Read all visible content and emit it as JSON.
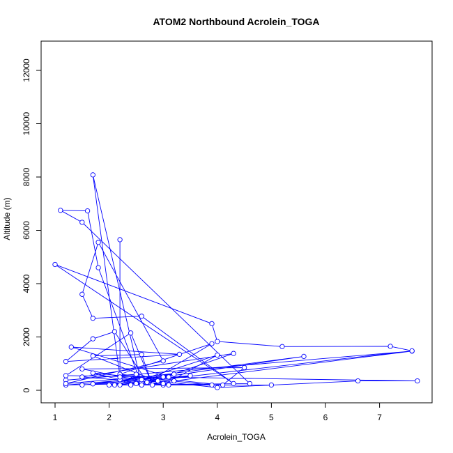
{
  "chart_data": {
    "type": "line",
    "title": "ATOM2 Northbound Acrolein_TOGA",
    "xlabel": "Acrolein_TOGA",
    "ylabel": "Altitude (m)",
    "xlim": [
      1,
      7.7
    ],
    "ylim": [
      0,
      12000
    ],
    "x_ticks": [
      1,
      2,
      3,
      4,
      5,
      6,
      7
    ],
    "y_ticks": [
      0,
      2000,
      4000,
      6000,
      8000,
      10000,
      12000
    ],
    "series_color": "#0000ff",
    "series": [
      {
        "marker": "open-circle",
        "points": [
          [
            2.2,
            5650
          ],
          [
            2.2,
            400
          ],
          [
            2.6,
            300
          ],
          [
            3.1,
            500
          ],
          [
            1.3,
            1620
          ],
          [
            3.3,
            1350
          ],
          [
            1.2,
            1080
          ],
          [
            1.7,
            1930
          ],
          [
            2.1,
            2200
          ],
          [
            2.7,
            300
          ],
          [
            3.9,
            1750
          ],
          [
            2.2,
            600
          ],
          [
            4.1,
            200
          ],
          [
            4.5,
            850
          ],
          [
            1.5,
            800
          ],
          [
            3.0,
            200
          ],
          [
            4.0,
            1320
          ],
          [
            2.6,
            400
          ],
          [
            1.5,
            200
          ],
          [
            3.5,
            550
          ],
          [
            2.2,
            200
          ],
          [
            2.5,
            600
          ],
          [
            1.2,
            380
          ],
          [
            7.6,
            1470
          ],
          [
            3.2,
            350
          ],
          [
            1.7,
            240
          ],
          [
            5.6,
            1270
          ],
          [
            3.0,
            500
          ],
          [
            1.2,
            200
          ],
          [
            2.5,
            250
          ],
          [
            3.9,
            200
          ],
          [
            1.7,
            650
          ],
          [
            2.6,
            200
          ],
          [
            4.3,
            1380
          ],
          [
            1.5,
            500
          ],
          [
            3.0,
            250
          ],
          [
            1.7,
            1290
          ],
          [
            2.6,
            1340
          ],
          [
            2.8,
            200
          ],
          [
            2.4,
            2150
          ],
          [
            1.2,
            550
          ],
          [
            7.7,
            350
          ],
          [
            6.6,
            350
          ],
          [
            4.0,
            100
          ],
          [
            2.2,
            500
          ],
          [
            1.7,
            8080
          ],
          [
            2.6,
            200
          ],
          [
            1.8,
            4600
          ],
          [
            1.6,
            6730
          ],
          [
            1.1,
            6750
          ],
          [
            1.5,
            6300
          ],
          [
            4.6,
            250
          ],
          [
            2.0,
            200
          ],
          [
            3.2,
            600
          ],
          [
            1.2,
            250
          ],
          [
            3.0,
            1100
          ],
          [
            1.8,
            5550
          ],
          [
            1.5,
            3600
          ],
          [
            1.7,
            2700
          ],
          [
            2.6,
            2780
          ],
          [
            4.3,
            250
          ],
          [
            1.0,
            4720
          ],
          [
            3.9,
            2500
          ],
          [
            4.0,
            1830
          ],
          [
            5.2,
            1640
          ],
          [
            7.2,
            1650
          ],
          [
            7.6,
            1480
          ],
          [
            2.1,
            200
          ],
          [
            5.0,
            200
          ],
          [
            2.4,
            200
          ],
          [
            2.9,
            350
          ],
          [
            3.1,
            200
          ]
        ]
      }
    ]
  }
}
